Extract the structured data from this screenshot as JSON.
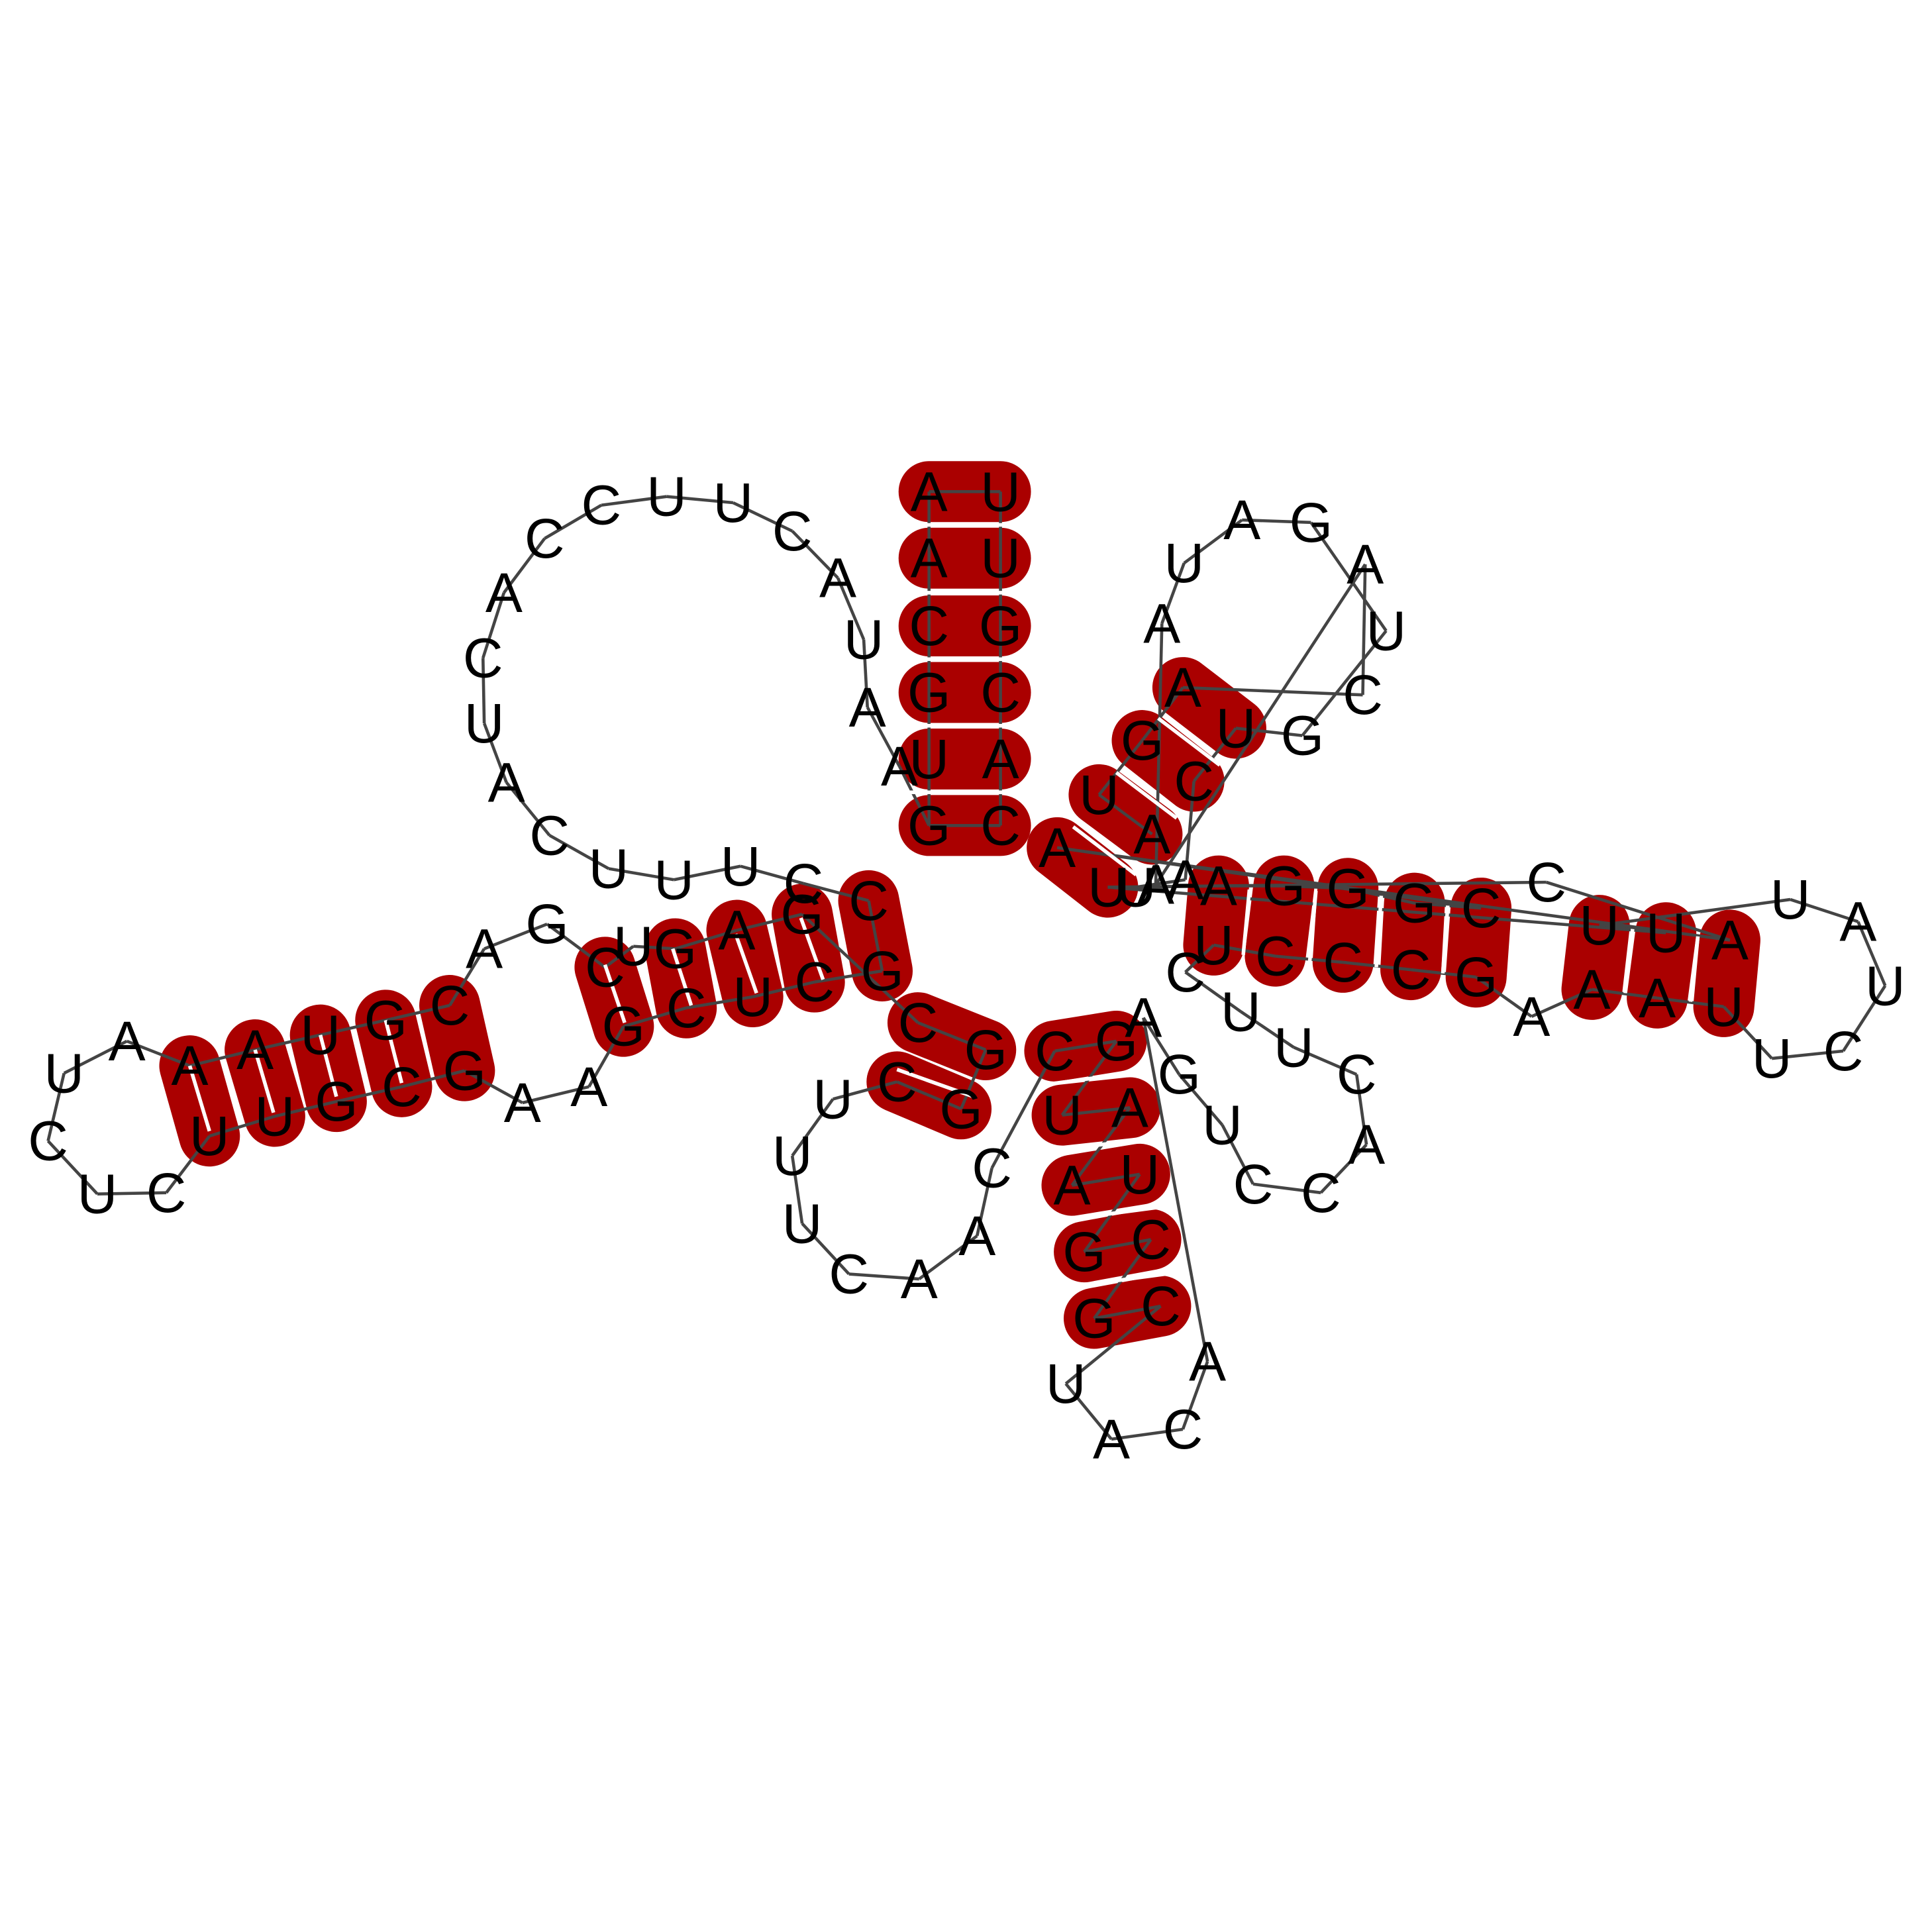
{
  "sequence": [
    "G",
    "U",
    "A",
    "A",
    "U",
    "A",
    "C",
    "U",
    "U",
    "C",
    "C",
    "A",
    "C",
    "A",
    "U",
    "C",
    "A",
    "U",
    "U",
    "U",
    "C",
    "G",
    "A",
    "G",
    "U",
    "C",
    "G",
    "G",
    "C",
    "U",
    "A",
    "U",
    "U",
    "U",
    "C",
    "U",
    "G",
    "G",
    "A",
    "A",
    "A",
    "C",
    "G",
    "C",
    "U",
    "G",
    "C",
    "A",
    "A",
    "U",
    "A",
    "C",
    "U",
    "U",
    "U",
    "A",
    "G",
    "C",
    "C",
    "A",
    "U",
    "C",
    "G",
    "C",
    "A",
    "G",
    "U",
    "C",
    "U",
    "U",
    "C",
    "C",
    "U",
    "C",
    "G",
    "G",
    "A",
    "U",
    "A",
    "C",
    "A",
    "A",
    "U",
    "G",
    "A",
    "C",
    "U",
    "C",
    "C",
    "A",
    "C",
    "U",
    "U",
    "A",
    "A",
    "U",
    "C",
    "U",
    "U",
    "A",
    "A",
    "C",
    "G",
    "G",
    "G",
    "A",
    "U",
    "U",
    "C",
    "G",
    "U",
    "A",
    "A",
    "A",
    "G",
    "A",
    "U",
    "U",
    "A",
    "G",
    "C",
    "G",
    "U",
    "A",
    "C",
    "G",
    "U",
    "U",
    "A",
    "C",
    "C",
    "U",
    "C",
    "A",
    "A",
    "U",
    "A",
    "A",
    "C",
    "C",
    "G",
    "G",
    "A",
    "C",
    "C",
    "A",
    "U",
    "C",
    "U",
    "G",
    "C",
    "C",
    "U",
    "U",
    "G",
    "A",
    "A",
    "C",
    "G",
    "C",
    "A",
    "A",
    "A",
    "C",
    "U",
    "C",
    "U",
    "U",
    "U",
    "G",
    "G",
    "U",
    "U",
    "G",
    "U",
    "A",
    "C"
  ],
  "pairs": [
    [
      0,
      6
    ],
    [
      1,
      5
    ]
  ],
  "colors": {
    "stem": "#aa0000",
    "backbone": "#444444",
    "pair_line": "#ffffff",
    "text": "#000000"
  }
}
